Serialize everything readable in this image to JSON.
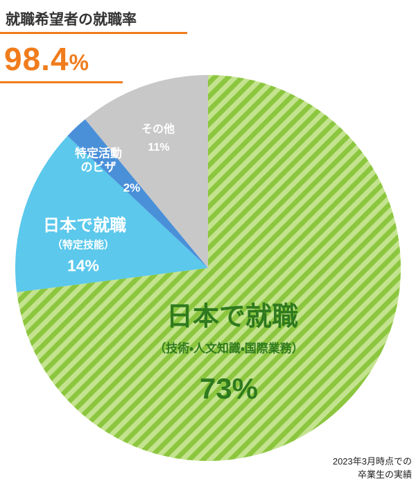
{
  "header": {
    "title": "就職希望者の就職率",
    "rate": 98.4,
    "rate_unit": "%"
  },
  "chart_data": {
    "type": "pie",
    "categories": [
      "日本で就職",
      "日本で就職",
      "特定活動のビザ",
      "その他"
    ],
    "sublabels": [
      "（技術・人文知識・国際業務）",
      "（特定技能）",
      null,
      null
    ],
    "values": [
      73,
      14,
      2,
      11
    ],
    "value_labels": [
      "73%",
      "14%",
      "2%",
      "11%"
    ],
    "colors": [
      "#8cc63f",
      "#5bc8ec",
      "#4a90d9",
      "#c8c8c8"
    ],
    "stripe_color": "#c4e38f"
  },
  "note": [
    "2023年3月時点での",
    "卒業生の実績"
  ]
}
